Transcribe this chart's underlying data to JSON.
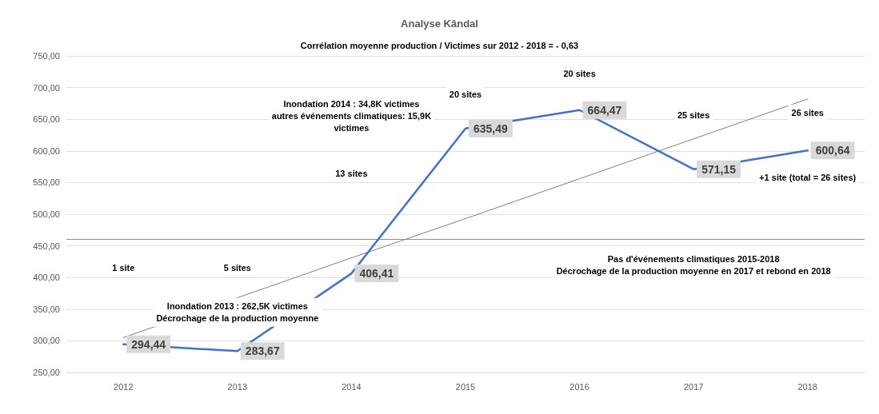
{
  "chart_data": {
    "type": "line",
    "title": "Analyse Kândal",
    "subtitle": "Corrélation moyenne production / Victimes sur 2012 - 2018 = - 0,63",
    "categories": [
      "2012",
      "2013",
      "2014",
      "2015",
      "2016",
      "2017",
      "2018"
    ],
    "series": [
      {
        "color": "#4472c4",
        "values": [
          294.44,
          283.67,
          406.41,
          635.49,
          664.47,
          571.15,
          600.64
        ],
        "value_labels": [
          "294,44",
          "283,67",
          "406,41",
          "635,49",
          "664,47",
          "571,15",
          "600,64"
        ]
      },
      {
        "type": "line",
        "color": "#7f7f7f",
        "values": [
          305,
          368,
          431,
          493,
          556,
          619,
          682
        ]
      }
    ],
    "ylim": [
      250,
      750
    ],
    "yticks": [
      {
        "value": 250,
        "label": "250,00"
      },
      {
        "value": 300,
        "label": "300,00"
      },
      {
        "value": 350,
        "label": "350,00"
      },
      {
        "value": 400,
        "label": "400,00"
      },
      {
        "value": 450,
        "label": "450,00"
      },
      {
        "value": 500,
        "label": "500,00"
      },
      {
        "value": 550,
        "label": "550,00"
      },
      {
        "value": 600,
        "label": "600,00"
      },
      {
        "value": 650,
        "label": "650,00"
      },
      {
        "value": 700,
        "label": "700,00"
      },
      {
        "value": 750,
        "label": "750,00"
      }
    ],
    "grid": "y",
    "line_style": "solid",
    "ref_lines": [
      {
        "axis": "y",
        "value": 460,
        "color": "#70ad47"
      }
    ],
    "annotations": [
      "1 site",
      "5 sites",
      "13 sites",
      "20 sites",
      "20 sites",
      "25 sites",
      "26 sites",
      "+1 site (total = 26 sites)",
      "Inondation 2014 : 34,8K victimes\nautres événements climatiques: 15,9K\nvictimes",
      "Inondation 2013 : 262,5K victimes\nDécrochage de la production moyenne",
      "Pas d'événements climatiques 2015-2018\nDécrochage de la production moyenne en 2017 et rebond en 2018"
    ]
  }
}
